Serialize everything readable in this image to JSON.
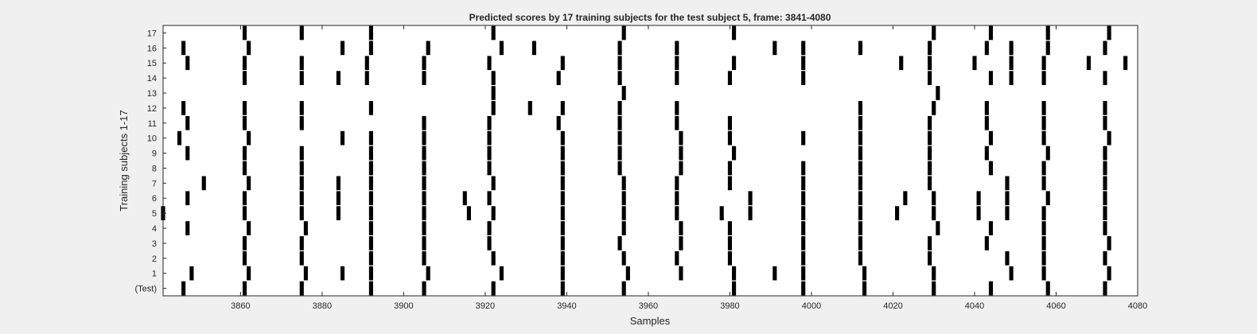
{
  "chart_data": {
    "type": "raster",
    "title": "Predicted scores by 17 training subjects for the test subject 5, frame: 3841-4080",
    "xlabel": "Samples",
    "ylabel": "Training subjects 1-17",
    "xlim": [
      3841,
      4080
    ],
    "xticks": [
      3860,
      3880,
      3900,
      3920,
      3940,
      3960,
      3980,
      4000,
      4020,
      4040,
      4060,
      4080
    ],
    "rows": [
      {
        "label": "17",
        "events": [
          3861,
          3875,
          3892,
          3922,
          3954,
          3981,
          4030,
          4044,
          4058,
          4073
        ]
      },
      {
        "label": "16",
        "events": [
          3846,
          3862,
          3885,
          3892,
          3906,
          3924,
          3932,
          3953,
          3967,
          3991,
          3998,
          4012,
          4029,
          4043,
          4049,
          4058,
          4072
        ]
      },
      {
        "label": "15",
        "events": [
          3847,
          3861,
          3875,
          3891,
          3905,
          3921,
          3939,
          3953,
          3967,
          3981,
          3998,
          4022,
          4029,
          4040,
          4049,
          4057,
          4068,
          4077
        ]
      },
      {
        "label": "14",
        "events": [
          3861,
          3875,
          3884,
          3891,
          3905,
          3922,
          3938,
          3953,
          3967,
          3980,
          3998,
          4029,
          4044,
          4049,
          4057,
          4072
        ]
      },
      {
        "label": "13",
        "events": [
          3922,
          3954,
          4031
        ]
      },
      {
        "label": "12",
        "events": [
          3846,
          3861,
          3875,
          3892,
          3922,
          3931,
          3939,
          3953,
          3967,
          4012,
          4030,
          4043,
          4057,
          4072
        ]
      },
      {
        "label": "11",
        "events": [
          3847,
          3861,
          3875,
          3905,
          3921,
          3938,
          3953,
          3967,
          3980,
          4012,
          4029,
          4043,
          4057,
          4072
        ]
      },
      {
        "label": "10",
        "events": [
          3845,
          3862,
          3885,
          3892,
          3905,
          3921,
          3939,
          3953,
          3968,
          3980,
          3998,
          4012,
          4029,
          4044,
          4057,
          4073
        ]
      },
      {
        "label": "9",
        "events": [
          3847,
          3861,
          3875,
          3892,
          3905,
          3921,
          3939,
          3953,
          3968,
          3981,
          4012,
          4029,
          4043,
          4058,
          4072
        ]
      },
      {
        "label": "8",
        "events": [
          3861,
          3875,
          3892,
          3905,
          3921,
          3939,
          3953,
          3968,
          3980,
          3998,
          4012,
          4029,
          4044,
          4057,
          4072
        ]
      },
      {
        "label": "7",
        "events": [
          3851,
          3862,
          3875,
          3884,
          3892,
          3905,
          3922,
          3939,
          3954,
          3967,
          3980,
          3998,
          4012,
          4029,
          4048,
          4057,
          4072
        ]
      },
      {
        "label": "6",
        "events": [
          3847,
          3861,
          3875,
          3884,
          3892,
          3905,
          3915,
          3921,
          3939,
          3954,
          3967,
          3985,
          3998,
          4012,
          4023,
          4030,
          4041,
          4048,
          4058,
          4072
        ]
      },
      {
        "label": "5",
        "events": [
          3841,
          3861,
          3875,
          3884,
          3892,
          3905,
          3916,
          3922,
          3939,
          3954,
          3967,
          3978,
          3985,
          3998,
          4012,
          4021,
          4030,
          4041,
          4048,
          4057,
          4072
        ]
      },
      {
        "label": "4",
        "events": [
          3847,
          3862,
          3876,
          3892,
          3905,
          3921,
          3939,
          3954,
          3968,
          3980,
          3998,
          4012,
          4031,
          4044,
          4057,
          4072
        ]
      },
      {
        "label": "3",
        "events": [
          3861,
          3875,
          3892,
          3905,
          3921,
          3939,
          3953,
          3968,
          3980,
          3998,
          4012,
          4029,
          4043,
          4057,
          4073
        ]
      },
      {
        "label": "2",
        "events": [
          3861,
          3875,
          3892,
          3905,
          3922,
          3939,
          3954,
          3967,
          3980,
          3998,
          4012,
          4029,
          4048,
          4057,
          4072
        ]
      },
      {
        "label": "1",
        "events": [
          3848,
          3862,
          3876,
          3885,
          3892,
          3906,
          3924,
          3939,
          3955,
          3968,
          3981,
          3991,
          3998,
          4013,
          4030,
          4049,
          4057,
          4073
        ]
      },
      {
        "label": "(Test)",
        "events": [
          3846,
          3861,
          3875,
          3892,
          3905,
          3922,
          3939,
          3954,
          3981,
          3998,
          4013,
          4030,
          4044,
          4058,
          4072
        ]
      }
    ]
  }
}
